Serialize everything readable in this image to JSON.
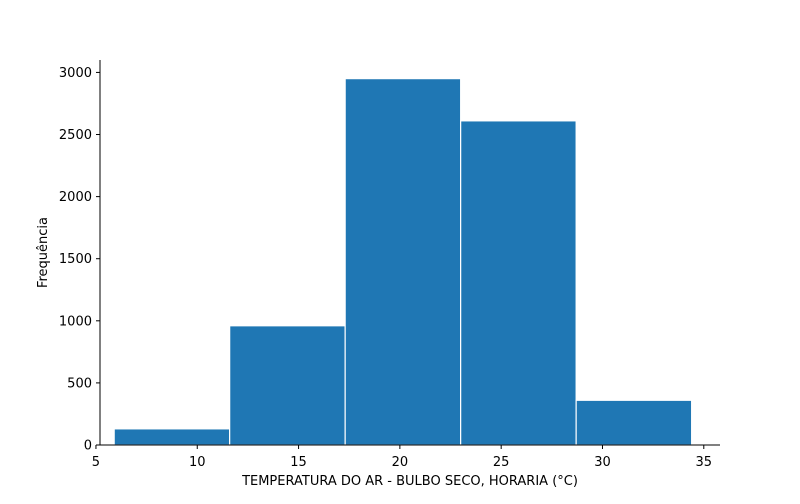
{
  "chart_data": {
    "type": "bar",
    "subtype": "histogram",
    "title": "",
    "xlabel": "TEMPERATURA DO AR - BULBO SECO, HORARIA (°C)",
    "ylabel": "Frequência",
    "xlim": [
      5.2,
      35.8
    ],
    "ylim": [
      0,
      3100
    ],
    "xticks": [
      5,
      10,
      15,
      20,
      25,
      30,
      35
    ],
    "yticks": [
      0,
      500,
      1000,
      1500,
      2000,
      2500,
      3000
    ],
    "bins": [
      {
        "start": 5.9,
        "end": 11.6,
        "value": 130
      },
      {
        "start": 11.6,
        "end": 17.3,
        "value": 960
      },
      {
        "start": 17.3,
        "end": 23.0,
        "value": 2950
      },
      {
        "start": 23.0,
        "end": 28.7,
        "value": 2610
      },
      {
        "start": 28.7,
        "end": 34.4,
        "value": 360
      }
    ],
    "grid": false,
    "legend": "none",
    "spines": "left-bottom",
    "colors": {
      "bar": "#1f77b4",
      "bar_edge": "#ffffff",
      "axis": "#000000"
    }
  }
}
